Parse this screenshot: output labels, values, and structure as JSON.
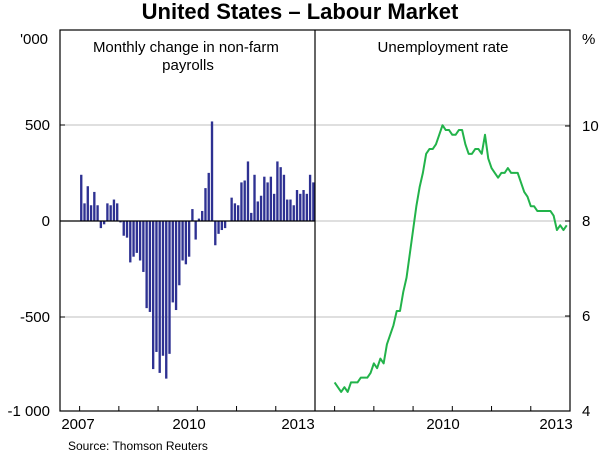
{
  "title": "United States – Labour Market",
  "source": "Source: Thomson Reuters",
  "colors": {
    "payrolls": "#2e3192",
    "unemployment": "#22b34a",
    "grid": "#bfbfbf"
  },
  "chart_data": [
    {
      "type": "bar",
      "panel_title": "Monthly change in non-farm payrolls",
      "y_unit": "'000",
      "ylim": [
        -1000,
        1000
      ],
      "yticks": [
        "-1 000",
        "-500",
        "0",
        "500"
      ],
      "xticks": [
        "2007",
        "2010",
        "2013"
      ],
      "x_start": "2007-01",
      "x_end": "2012-12",
      "grid": true,
      "values": [
        240,
        90,
        180,
        80,
        150,
        80,
        -40,
        -20,
        90,
        80,
        110,
        90,
        -10,
        -80,
        -90,
        -220,
        -190,
        -170,
        -210,
        -270,
        -460,
        -480,
        -780,
        -690,
        -800,
        -710,
        -830,
        -700,
        -430,
        -470,
        -340,
        -210,
        -230,
        -190,
        60,
        -100,
        10,
        50,
        170,
        250,
        520,
        -130,
        -70,
        -50,
        -40,
        0,
        120,
        90,
        80,
        200,
        210,
        310,
        40,
        240,
        100,
        130,
        230,
        200,
        230,
        140,
        310,
        280,
        240,
        110,
        110,
        80,
        160,
        140,
        160,
        140,
        240,
        200
      ]
    },
    {
      "type": "line",
      "panel_title": "Unemployment rate",
      "y_unit": "%",
      "ylim": [
        4,
        12
      ],
      "yticks": [
        "4",
        "6",
        "8",
        "10"
      ],
      "xticks": [
        "2010",
        "2013"
      ],
      "x_start": "2007-01",
      "x_end": "2012-12",
      "grid": true,
      "values": [
        4.6,
        4.5,
        4.4,
        4.5,
        4.4,
        4.6,
        4.6,
        4.6,
        4.7,
        4.7,
        4.7,
        4.8,
        5.0,
        4.9,
        5.1,
        5.0,
        5.4,
        5.6,
        5.8,
        6.1,
        6.1,
        6.5,
        6.8,
        7.3,
        7.8,
        8.3,
        8.7,
        9.0,
        9.4,
        9.5,
        9.5,
        9.6,
        9.8,
        10.0,
        9.9,
        9.9,
        9.8,
        9.8,
        9.9,
        9.9,
        9.6,
        9.4,
        9.4,
        9.5,
        9.5,
        9.4,
        9.8,
        9.3,
        9.1,
        9.0,
        8.9,
        9.0,
        9.0,
        9.1,
        9.0,
        9.0,
        9.0,
        8.8,
        8.6,
        8.5,
        8.3,
        8.3,
        8.2,
        8.2,
        8.2,
        8.2,
        8.2,
        8.1,
        7.8,
        7.9,
        7.8,
        7.9
      ]
    }
  ]
}
